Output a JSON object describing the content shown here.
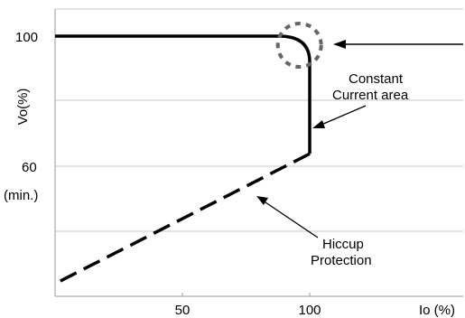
{
  "chart_data": {
    "type": "line",
    "title": "",
    "xlabel": "Io (%)",
    "ylabel": "Vo(%)",
    "xlim": [
      0,
      115
    ],
    "ylim": [
      20,
      110
    ],
    "x_ticks": [
      50,
      100
    ],
    "x_tick_labels": [
      "50",
      "100"
    ],
    "y_ticks": [
      100,
      60
    ],
    "y_tick_labels": [
      "100",
      "60"
    ],
    "y_tick_sublabel": "(min.)",
    "grid": "horizontal",
    "series": [
      {
        "style": "solid",
        "points": [
          [
            0,
            100
          ],
          [
            88,
            100
          ],
          [
            95,
            99
          ],
          [
            97.5,
            96
          ],
          [
            100,
            94
          ],
          [
            100,
            62
          ]
        ]
      },
      {
        "style": "dashed",
        "points": [
          [
            100,
            62
          ],
          [
            0,
            20
          ]
        ]
      }
    ],
    "annotations": [
      {
        "label_lines": [
          "Constant",
          "Current area"
        ]
      },
      {
        "label_lines": [
          "Hiccup",
          "Protection"
        ]
      }
    ],
    "highlight": {
      "shape": "dashed-circle",
      "center": [
        96,
        100
      ],
      "style": "dotted"
    }
  }
}
